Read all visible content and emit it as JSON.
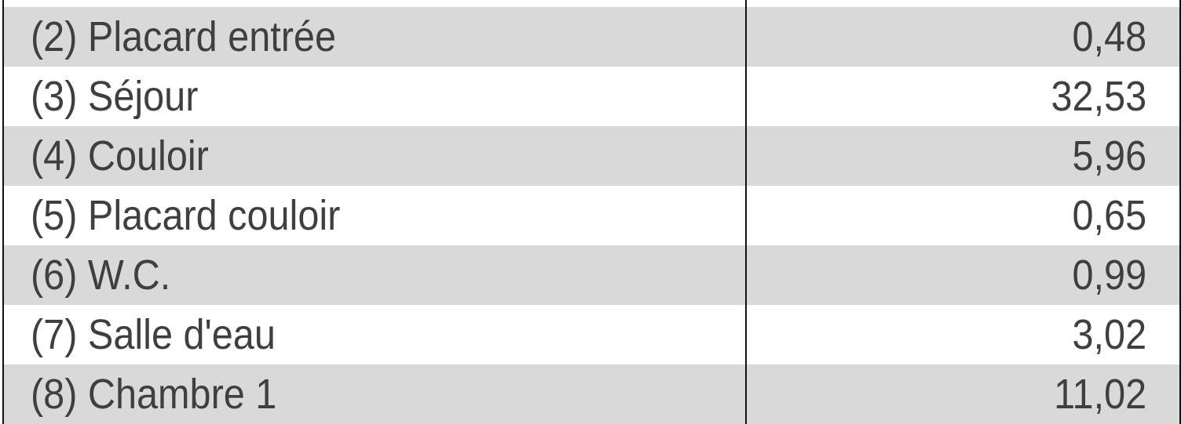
{
  "colors": {
    "stripe": "#d9d9d9",
    "text": "#3f3f3f",
    "border": "#111111"
  },
  "rows": [
    {
      "name": "",
      "value": ""
    },
    {
      "name": "(2) Placard entrée",
      "value": "0,48"
    },
    {
      "name": "(3) Séjour",
      "value": "32,53"
    },
    {
      "name": "(4) Couloir",
      "value": "5,96"
    },
    {
      "name": "(5) Placard couloir",
      "value": "0,65"
    },
    {
      "name": "(6) W.C.",
      "value": "0,99"
    },
    {
      "name": "(7) Salle d'eau",
      "value": "3,02"
    },
    {
      "name": "(8) Chambre 1",
      "value": "11,02"
    }
  ]
}
